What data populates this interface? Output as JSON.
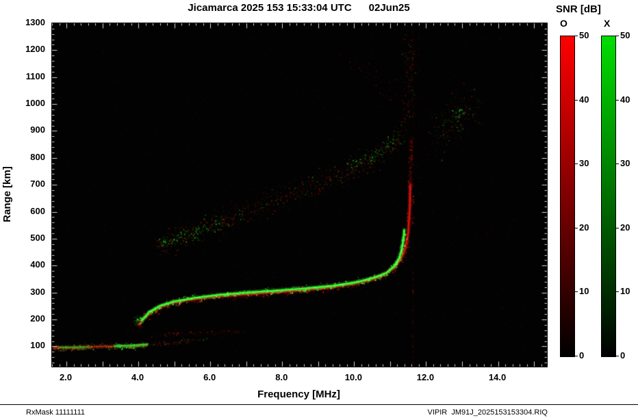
{
  "title": "Jicamarca 2025 153 15:33:04 UTC      02Jun25",
  "axes": {
    "xlabel": "Frequency [MHz]",
    "ylabel": "Range [km]",
    "xlim": [
      1.6,
      15.36
    ],
    "ylim": [
      25,
      1300
    ],
    "xticks": [
      2,
      4,
      6,
      8,
      10,
      12,
      14
    ],
    "xtick_labels": [
      "2.0",
      "4.0",
      "6.0",
      "8.0",
      "10.0",
      "12.0",
      "14.0"
    ],
    "yticks": [
      100,
      200,
      300,
      400,
      500,
      600,
      700,
      800,
      900,
      1000,
      1100,
      1200,
      1300
    ],
    "x_minor_step": 0.2,
    "x_major_step": 1.0,
    "y_minor_step": 20,
    "y_major_step": 100
  },
  "colorbar": {
    "title": "SNR [dB]",
    "min": 0,
    "max": 50,
    "ticks": [
      0,
      10,
      20,
      30,
      40,
      50
    ],
    "bars": [
      {
        "label": "O",
        "top_color": "#ff0000"
      },
      {
        "label": "X",
        "top_color": "#00dd00"
      }
    ]
  },
  "footer": {
    "left": "RxMask 11111111",
    "right": "VIPIR  JM91J_2025153153304.RIQ"
  },
  "plot_bg": "#020202",
  "chart_data": {
    "type": "scatter",
    "title": "Jicamarca 2025 153 15:33:04 UTC 02Jun25 ionogram",
    "xlabel": "Frequency [MHz]",
    "ylabel": "Range [km]",
    "xlim": [
      1.6,
      15.36
    ],
    "ylim": [
      25,
      1300
    ],
    "snr_scale": {
      "min": 0,
      "max": 50,
      "modes": [
        "O",
        "X"
      ]
    },
    "series": [
      {
        "name": "background-noise",
        "render": "noise",
        "count": 1800,
        "colors": [
          [
            "#a01010",
            0.72
          ],
          [
            "#109010",
            0.28
          ]
        ],
        "alpha": [
          0.06,
          0.4
        ]
      },
      {
        "name": "E-trace-O",
        "render": "trace",
        "points": [
          [
            1.65,
            95
          ],
          [
            2.2,
            97
          ],
          [
            2.8,
            99
          ],
          [
            3.4,
            101
          ],
          [
            3.9,
            103
          ],
          [
            4.25,
            107
          ]
        ],
        "line": {
          "color": "#d02010",
          "width": 2,
          "alpha": 0.75
        },
        "speckle": {
          "colors": [
            [
              "#e03010",
              0.6
            ],
            [
              "#20c020",
              0.4
            ]
          ],
          "sigma_km": 6,
          "sigma_mhz": 0.05,
          "density": 2.5,
          "alpha": [
            0.25,
            0.9
          ]
        }
      },
      {
        "name": "E-trace-X-right",
        "render": "trace",
        "points": [
          [
            3.35,
            101
          ],
          [
            3.8,
            103
          ],
          [
            4.25,
            108
          ]
        ],
        "line": {
          "color": "#30e030",
          "width": 2,
          "alpha": 0.8
        },
        "speckle": {
          "colors": [
            [
              "#30e030",
              1
            ]
          ],
          "sigma_km": 5,
          "sigma_mhz": 0.04,
          "density": 2.5,
          "alpha": [
            0.3,
            0.95
          ]
        }
      },
      {
        "name": "E-trace-X-left",
        "render": "trace",
        "points": [
          [
            1.8,
            96
          ],
          [
            2.6,
            98
          ]
        ],
        "line": {
          "color": "#28c828",
          "width": 1.5,
          "alpha": 0.55
        },
        "speckle": {
          "colors": [
            [
              "#28c828",
              1
            ]
          ],
          "sigma_km": 5,
          "sigma_mhz": 0.04,
          "density": 1.8,
          "alpha": [
            0.2,
            0.8
          ]
        }
      },
      {
        "name": "E-tail",
        "render": "trace",
        "points": [
          [
            4.3,
            110
          ],
          [
            5.0,
            117
          ],
          [
            5.8,
            123
          ]
        ],
        "speckle": {
          "colors": [
            [
              "#b01818",
              0.8
            ],
            [
              "#20a020",
              0.2
            ]
          ],
          "sigma_km": 7,
          "sigma_mhz": 0.06,
          "density": 1.2,
          "alpha": [
            0.12,
            0.5
          ]
        }
      },
      {
        "name": "Es-second-echo",
        "render": "trace",
        "points": [
          [
            4.3,
            143
          ],
          [
            5.2,
            149
          ],
          [
            6.2,
            154
          ],
          [
            7.0,
            158
          ]
        ],
        "speckle": {
          "colors": [
            [
              "#a81414",
              1
            ]
          ],
          "sigma_km": 5,
          "sigma_mhz": 0.05,
          "density": 1.1,
          "alpha": [
            0.12,
            0.5
          ]
        }
      },
      {
        "name": "F-trace-O",
        "render": "trace",
        "points": [
          [
            4.02,
            182
          ],
          [
            4.15,
            204
          ],
          [
            4.4,
            234
          ],
          [
            4.8,
            257
          ],
          [
            5.3,
            271
          ],
          [
            6.0,
            283
          ],
          [
            6.8,
            292
          ],
          [
            7.6,
            300
          ],
          [
            8.4,
            307
          ],
          [
            9.2,
            317
          ],
          [
            9.9,
            330
          ],
          [
            10.4,
            345
          ],
          [
            10.8,
            365
          ],
          [
            11.1,
            391
          ],
          [
            11.3,
            424
          ],
          [
            11.42,
            464
          ],
          [
            11.5,
            520
          ],
          [
            11.54,
            600
          ],
          [
            11.56,
            700
          ]
        ],
        "line": {
          "color": "#e81610",
          "width": 2.4,
          "alpha": 0.9
        },
        "speckle": {
          "colors": [
            [
              "#d01410",
              1
            ]
          ],
          "sigma_km": 8,
          "sigma_mhz": 0.04,
          "density": 2.2,
          "alpha": [
            0.2,
            0.8
          ]
        }
      },
      {
        "name": "F-trace-O-asymptote-top",
        "render": "trace",
        "points": [
          [
            11.55,
            690
          ],
          [
            11.56,
            780
          ],
          [
            11.57,
            870
          ]
        ],
        "speckle": {
          "colors": [
            [
              "#c81410",
              1
            ]
          ],
          "sigma_km": 6,
          "sigma_mhz": 0.03,
          "density": 2.0,
          "alpha": [
            0.15,
            0.6
          ]
        }
      },
      {
        "name": "F-trace-X",
        "render": "trace",
        "points": [
          [
            4.1,
            198
          ],
          [
            4.3,
            227
          ],
          [
            4.6,
            251
          ],
          [
            5.0,
            267
          ],
          [
            5.5,
            279
          ],
          [
            6.2,
            291
          ],
          [
            7.0,
            300
          ],
          [
            7.8,
            307
          ],
          [
            8.6,
            315
          ],
          [
            9.4,
            325
          ],
          [
            10.0,
            337
          ],
          [
            10.5,
            353
          ],
          [
            10.9,
            373
          ],
          [
            11.1,
            397
          ],
          [
            11.25,
            427
          ],
          [
            11.33,
            464
          ],
          [
            11.38,
            508
          ],
          [
            11.39,
            532
          ]
        ],
        "line": {
          "color": "#35ff35",
          "width": 2.6,
          "alpha": 1
        },
        "speckle": {
          "colors": [
            [
              "#35ff35",
              0.7
            ],
            [
              "#90ff60",
              0.3
            ]
          ],
          "sigma_km": 6,
          "sigma_mhz": 0.03,
          "density": 2.0,
          "alpha": [
            0.25,
            0.9
          ]
        }
      },
      {
        "name": "F-foot-green-blob",
        "render": "trace",
        "points": [
          [
            3.92,
            196
          ],
          [
            4.1,
            201
          ]
        ],
        "speckle": {
          "colors": [
            [
              "#35ff35",
              1
            ]
          ],
          "sigma_km": 8,
          "sigma_mhz": 0.06,
          "density": 5.0,
          "alpha": [
            0.3,
            0.95
          ]
        }
      },
      {
        "name": "spread-F-band",
        "render": "trace",
        "points": [
          [
            4.5,
            480
          ],
          [
            5.0,
            505
          ],
          [
            5.9,
            545
          ],
          [
            6.8,
            592
          ],
          [
            7.7,
            640
          ],
          [
            8.4,
            672
          ],
          [
            9.2,
            715
          ],
          [
            10.0,
            762
          ],
          [
            10.5,
            800
          ],
          [
            11.0,
            850
          ],
          [
            11.3,
            890
          ]
        ],
        "speckle": {
          "colors": [
            [
              "#b81414",
              0.72
            ],
            [
              "#1fae1f",
              0.28
            ]
          ],
          "sigma_km": 24,
          "sigma_mhz": 0.07,
          "density": 3.0,
          "alpha": [
            0.1,
            0.55
          ]
        }
      },
      {
        "name": "spread-F-green-lower",
        "render": "trace",
        "points": [
          [
            4.55,
            478
          ],
          [
            5.1,
            502
          ],
          [
            5.7,
            530
          ],
          [
            6.3,
            560
          ]
        ],
        "speckle": {
          "colors": [
            [
              "#22c822",
              1
            ]
          ],
          "sigma_km": 12,
          "sigma_mhz": 0.05,
          "density": 1.6,
          "alpha": [
            0.15,
            0.7
          ]
        }
      },
      {
        "name": "spread-F-green-upper",
        "render": "trace",
        "points": [
          [
            9.8,
            770
          ],
          [
            10.4,
            805
          ],
          [
            10.9,
            845
          ],
          [
            11.2,
            880
          ]
        ],
        "speckle": {
          "colors": [
            [
              "#22c822",
              1
            ]
          ],
          "sigma_km": 14,
          "sigma_mhz": 0.05,
          "density": 1.5,
          "alpha": [
            0.15,
            0.7
          ]
        }
      },
      {
        "name": "spread-F-column",
        "render": "trace",
        "points": [
          [
            11.3,
            895
          ],
          [
            11.45,
            960
          ],
          [
            11.5,
            1040
          ],
          [
            11.52,
            1130
          ],
          [
            11.47,
            1230
          ]
        ],
        "speckle": {
          "colors": [
            [
              "#b01414",
              0.85
            ],
            [
              "#1fa01f",
              0.15
            ]
          ],
          "sigma_km": 28,
          "sigma_mhz": 0.09,
          "density": 1.8,
          "alpha": [
            0.08,
            0.45
          ]
        }
      },
      {
        "name": "top-arc",
        "render": "trace",
        "points": [
          [
            9.6,
            1185
          ],
          [
            10.2,
            1150
          ],
          [
            10.7,
            1100
          ],
          [
            11.0,
            1050
          ],
          [
            11.2,
            1005
          ]
        ],
        "speckle": {
          "colors": [
            [
              "#a81414",
              1
            ]
          ],
          "sigma_km": 30,
          "sigma_mhz": 0.15,
          "density": 0.9,
          "alpha": [
            0.07,
            0.35
          ]
        }
      },
      {
        "name": "right-cloud",
        "render": "trace",
        "points": [
          [
            12.2,
            880
          ],
          [
            12.6,
            930
          ],
          [
            13.0,
            968
          ],
          [
            13.4,
            1000
          ]
        ],
        "speckle": {
          "colors": [
            [
              "#b01414",
              0.6
            ],
            [
              "#1fae1f",
              0.4
            ]
          ],
          "sigma_km": 45,
          "sigma_mhz": 0.18,
          "density": 4.0,
          "alpha": [
            0.08,
            0.5
          ]
        }
      },
      {
        "name": "right-cloud-green-knot",
        "render": "trace",
        "points": [
          [
            12.7,
            950
          ],
          [
            13.0,
            975
          ]
        ],
        "speckle": {
          "colors": [
            [
              "#2ad42a",
              1
            ]
          ],
          "sigma_km": 16,
          "sigma_mhz": 0.07,
          "density": 2.2,
          "alpha": [
            0.15,
            0.7
          ]
        }
      },
      {
        "name": "rfi-line-1",
        "render": "trace",
        "points": [
          [
            11.62,
            40
          ],
          [
            11.62,
            1290
          ]
        ],
        "speckle": {
          "colors": [
            [
              "#b01414",
              1
            ]
          ],
          "sigma_km": 4,
          "sigma_mhz": 0.015,
          "density": 0.55,
          "alpha": [
            0.07,
            0.35
          ]
        }
      },
      {
        "name": "rfi-line-2",
        "render": "trace",
        "points": [
          [
            11.78,
            520
          ],
          [
            11.78,
            1290
          ]
        ],
        "speckle": {
          "colors": [
            [
              "#a01212",
              1
            ]
          ],
          "sigma_km": 4,
          "sigma_mhz": 0.015,
          "density": 0.3,
          "alpha": [
            0.05,
            0.25
          ]
        }
      },
      {
        "name": "faint-patch-14MHz",
        "render": "trace",
        "points": [
          [
            13.68,
            470
          ],
          [
            13.74,
            560
          ]
        ],
        "speckle": {
          "colors": [
            [
              "#a01212",
              1
            ]
          ],
          "sigma_km": 26,
          "sigma_mhz": 0.06,
          "density": 0.7,
          "alpha": [
            0.06,
            0.3
          ]
        }
      }
    ]
  }
}
